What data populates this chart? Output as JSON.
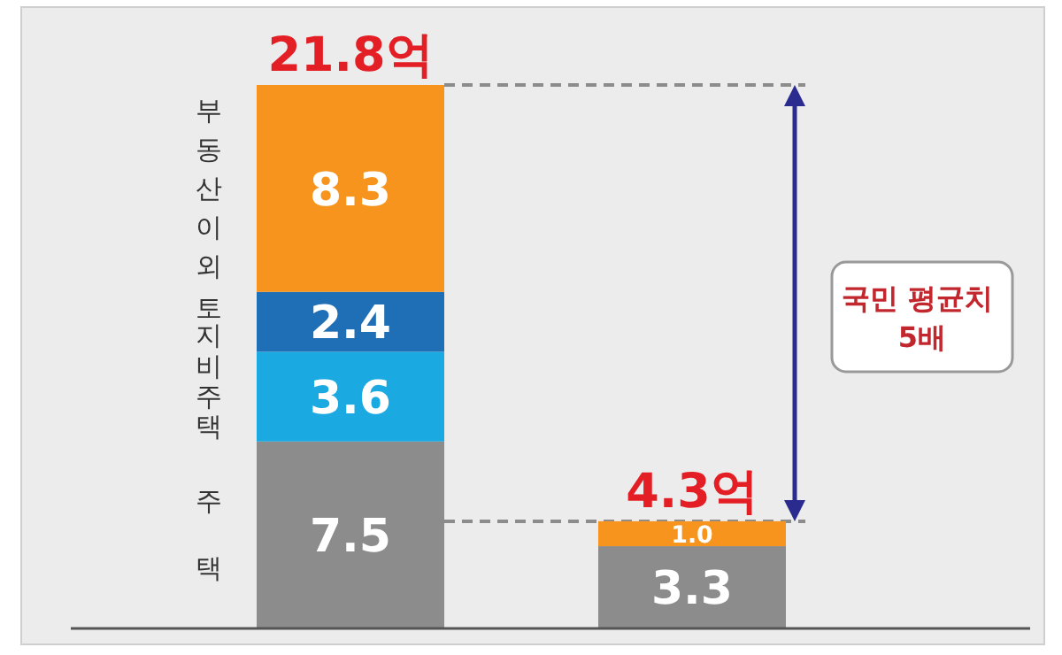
{
  "chart_data": {
    "type": "bar",
    "stacked": true,
    "categories": [
      null,
      null
    ],
    "series": [
      {
        "name": "주택",
        "color": "#8c8c8c",
        "values": [
          7.5,
          3.3
        ],
        "value_labels": [
          "7.5",
          "3.3"
        ]
      },
      {
        "name": "비주택",
        "color": "#1ba9e1",
        "values": [
          3.6,
          null
        ],
        "value_labels": [
          "3.6",
          null
        ]
      },
      {
        "name": "토지",
        "color": "#1f6fb6",
        "values": [
          2.4,
          null
        ],
        "value_labels": [
          "2.4",
          null
        ]
      },
      {
        "name": "부동산 이외",
        "color": "#f7941d",
        "values": [
          8.3,
          1.0
        ],
        "value_labels": [
          "8.3",
          "1.0"
        ]
      }
    ],
    "totals": [
      "21.8억",
      "4.3억"
    ],
    "ref_lines": [
      {
        "axis": "y",
        "value": 21.8,
        "color": "#8c8c8c",
        "line_style": "dashed"
      },
      {
        "axis": "y",
        "value": 4.3,
        "color": "#8c8c8c",
        "line_style": "dashed"
      }
    ],
    "annotations": [
      "국민 평균치 5배"
    ]
  }
}
